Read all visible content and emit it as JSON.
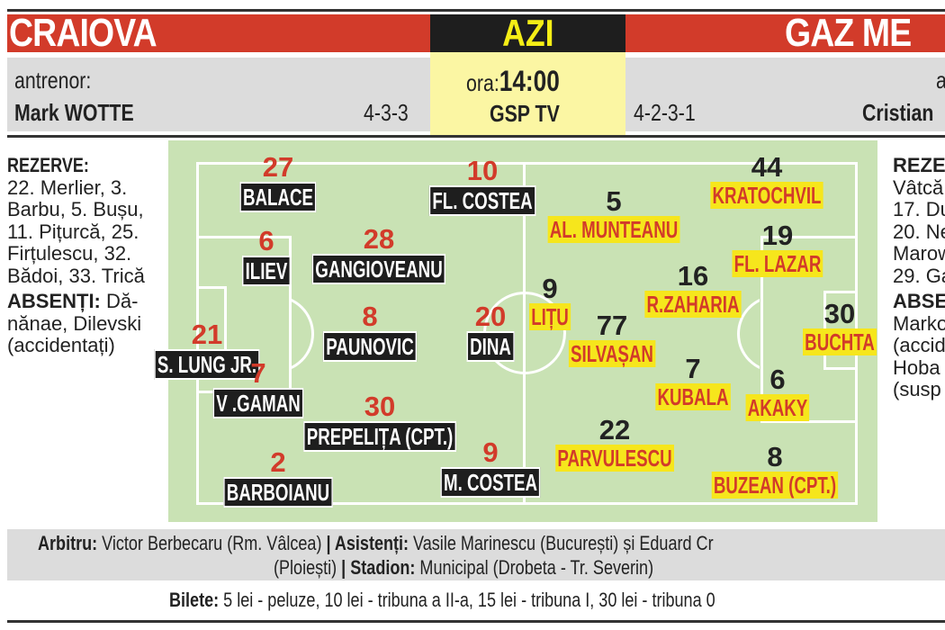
{
  "header": {
    "home_team": "CRAIOVA",
    "away_team": "GAZ ME",
    "day_label": "AZI",
    "time_prefix": "ora:",
    "time": "14:00",
    "broadcaster": "GSP TV"
  },
  "home": {
    "coach_label": "antrenor:",
    "coach": "Mark WOTTE",
    "formation": "4-3-3",
    "reserves_title": "REZERVE:",
    "reserves_lines": [
      "22. Merlier, 3.",
      "Barbu, 5. Bușu,",
      "11. Pițurcă, 25.",
      "Firțulescu, 32.",
      "Bădoi, 33. Trică"
    ],
    "absent_title": "ABSENȚI:",
    "absent_lines": [
      " Dă-",
      "nănae, Dilevski",
      "(accidentați)"
    ],
    "players": [
      {
        "number": "27",
        "name": "BALACE"
      },
      {
        "number": "10",
        "name": "FL. COSTEA"
      },
      {
        "number": "6",
        "name": "ILIEV"
      },
      {
        "number": "28",
        "name": "GANGIOVEANU"
      },
      {
        "number": "21",
        "name": "S. LUNG JR."
      },
      {
        "number": "8",
        "name": "PAUNOVIC"
      },
      {
        "number": "20",
        "name": "DINA"
      },
      {
        "number": "7",
        "name": "V .GAMAN"
      },
      {
        "number": "30",
        "name": "PREPELIȚA (CPT.)"
      },
      {
        "number": "2",
        "name": "BARBOIANU"
      },
      {
        "number": "9",
        "name": "M. COSTEA"
      }
    ]
  },
  "away": {
    "coach_label": "a",
    "coach": "Cristian",
    "formation": "4-2-3-1",
    "reserves_title": "REZE",
    "reserves_lines": [
      "Vâtcă",
      "17. Du",
      "20. Ne",
      "Marow",
      "29. Ga"
    ],
    "absent_title": "ABSE",
    "absent_lines": [
      "Marko",
      "(accid",
      "Hoba",
      "(susp"
    ],
    "players": [
      {
        "number": "44",
        "name": "KRATOCHVIL"
      },
      {
        "number": "5",
        "name": "AL. MUNTEANU"
      },
      {
        "number": "19",
        "name": "FL. LAZAR"
      },
      {
        "number": "16",
        "name": "R.ZAHARIA"
      },
      {
        "number": "9",
        "name": "LIȚU"
      },
      {
        "number": "30",
        "name": "BUCHTA"
      },
      {
        "number": "77",
        "name": "SILVAȘAN"
      },
      {
        "number": "7",
        "name": "KUBALA"
      },
      {
        "number": "6",
        "name": "AKAKY"
      },
      {
        "number": "22",
        "name": "PARVULESCU"
      },
      {
        "number": "8",
        "name": "BUZEAN (CPT.)"
      }
    ]
  },
  "officials": {
    "referee_label": "Arbitru:",
    "referee": " Victor Berbecaru (Rm. Vâlcea) ",
    "assistants_label": "| Asistenți:",
    "assistants": " Vasile Marinescu (București) și Eduard Cr",
    "assistants_cont": "(Ploiești) ",
    "stadium_label": "| Stadion:",
    "stadium": " Municipal (Drobeta - Tr. Severin)"
  },
  "tickets": {
    "label": "Bilete:",
    "text": " 5 lei - peluze, 10 lei - tribuna a II-a, 15 lei - tribuna I, 30 lei - tribuna 0"
  },
  "colors": {
    "red": "#d23b2a",
    "yellow": "#f6e61c",
    "pitch": "#c9e2b4",
    "gray": "#dcdcdc"
  }
}
